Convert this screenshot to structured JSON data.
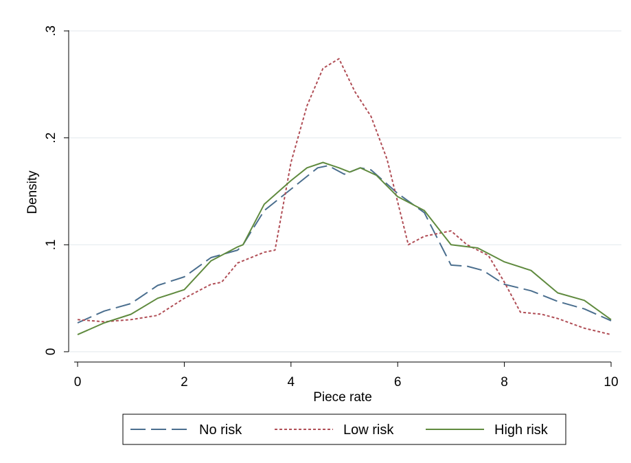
{
  "chart_data": {
    "type": "line",
    "xlabel": "Piece rate",
    "ylabel": "Density",
    "xlim": [
      0,
      10
    ],
    "ylim": [
      0,
      0.3
    ],
    "xticks": [
      0,
      2,
      4,
      6,
      8,
      10
    ],
    "xtick_labels": [
      "0",
      "2",
      "4",
      "6",
      "8",
      "10"
    ],
    "yticks": [
      0,
      0.1,
      0.2,
      0.3
    ],
    "ytick_labels": [
      "0",
      ".1",
      ".2",
      ".3"
    ],
    "grid": "horizontal",
    "legend_position": "bottom",
    "series": [
      {
        "name": "No risk",
        "color": "#4a6e8e",
        "dash": "long-dash",
        "x": [
          0,
          0.5,
          1,
          1.5,
          2,
          2.5,
          3,
          3.1,
          3.5,
          4,
          4.5,
          4.7,
          5,
          5.3,
          5.5,
          6,
          6.5,
          7,
          7.3,
          7.6,
          8,
          8.5,
          9,
          9.5,
          10
        ],
        "y": [
          0.027,
          0.038,
          0.045,
          0.062,
          0.07,
          0.088,
          0.095,
          0.1,
          0.132,
          0.152,
          0.172,
          0.174,
          0.166,
          0.172,
          0.17,
          0.148,
          0.13,
          0.081,
          0.08,
          0.076,
          0.063,
          0.057,
          0.047,
          0.04,
          0.029
        ]
      },
      {
        "name": "Low risk",
        "color": "#b04d55",
        "dash": "short-dash",
        "x": [
          0,
          0.5,
          1,
          1.5,
          2,
          2.5,
          2.7,
          3,
          3.5,
          3.7,
          4,
          4.3,
          4.6,
          4.9,
          5.2,
          5.5,
          5.8,
          6,
          6.2,
          6.5,
          7,
          7.3,
          7.7,
          8,
          8.3,
          8.7,
          9,
          9.5,
          10
        ],
        "y": [
          0.03,
          0.028,
          0.03,
          0.034,
          0.05,
          0.063,
          0.065,
          0.083,
          0.093,
          0.095,
          0.177,
          0.23,
          0.265,
          0.274,
          0.243,
          0.22,
          0.18,
          0.14,
          0.1,
          0.108,
          0.113,
          0.1,
          0.09,
          0.065,
          0.037,
          0.035,
          0.031,
          0.022,
          0.016
        ]
      },
      {
        "name": "High risk",
        "color": "#5f8a3e",
        "dash": "solid",
        "x": [
          0,
          0.5,
          1,
          1.5,
          2,
          2.5,
          3,
          3.1,
          3.5,
          4,
          4.3,
          4.6,
          4.9,
          5.1,
          5.3,
          5.6,
          6,
          6.5,
          7,
          7.5,
          8,
          8.5,
          9,
          9.5,
          10
        ],
        "y": [
          0.016,
          0.027,
          0.035,
          0.05,
          0.058,
          0.085,
          0.098,
          0.1,
          0.138,
          0.16,
          0.172,
          0.177,
          0.172,
          0.168,
          0.172,
          0.165,
          0.145,
          0.132,
          0.1,
          0.097,
          0.084,
          0.076,
          0.055,
          0.048,
          0.03
        ]
      }
    ]
  }
}
